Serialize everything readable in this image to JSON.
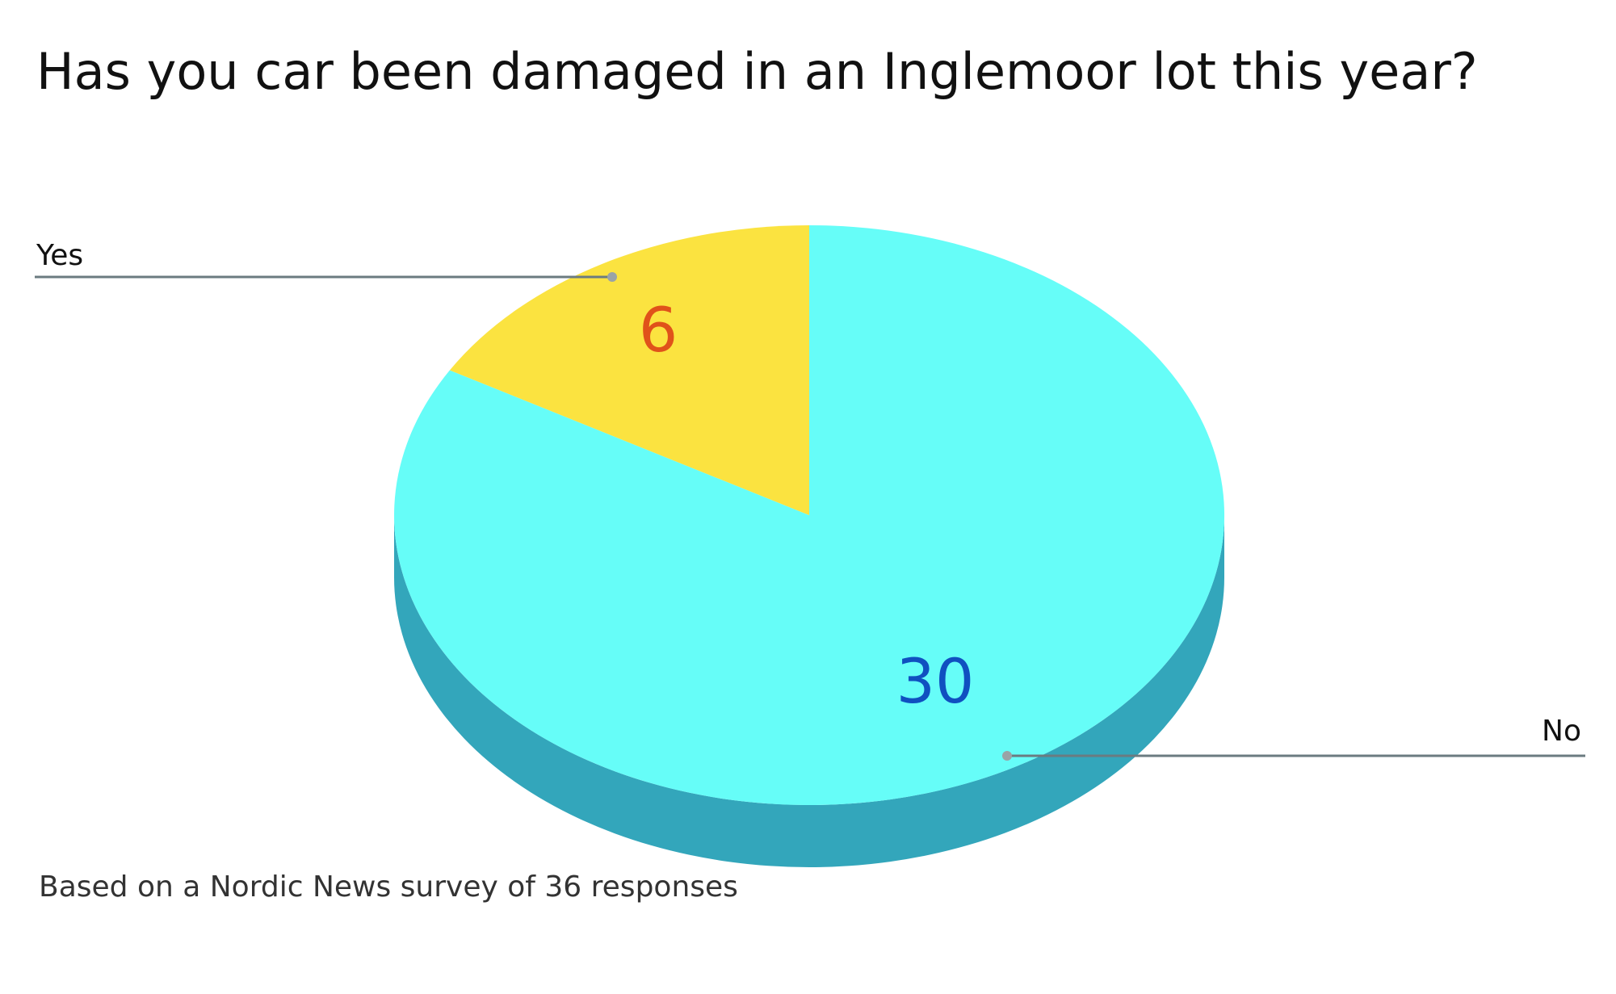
{
  "chart_data": {
    "type": "pie",
    "title": "Has you car been damaged in an Inglemoor lot this year?",
    "slices": [
      {
        "label": "Yes",
        "value": 6,
        "color": "#fbe340",
        "label_color": "#e0521a"
      },
      {
        "label": "No",
        "value": 30,
        "color": "#66fdf8",
        "side_color": "#33a6bb",
        "label_color": "#1050c0"
      }
    ],
    "note": "Based on a Nordic News survey of 36 responses",
    "style": "3d",
    "legend": "none"
  }
}
